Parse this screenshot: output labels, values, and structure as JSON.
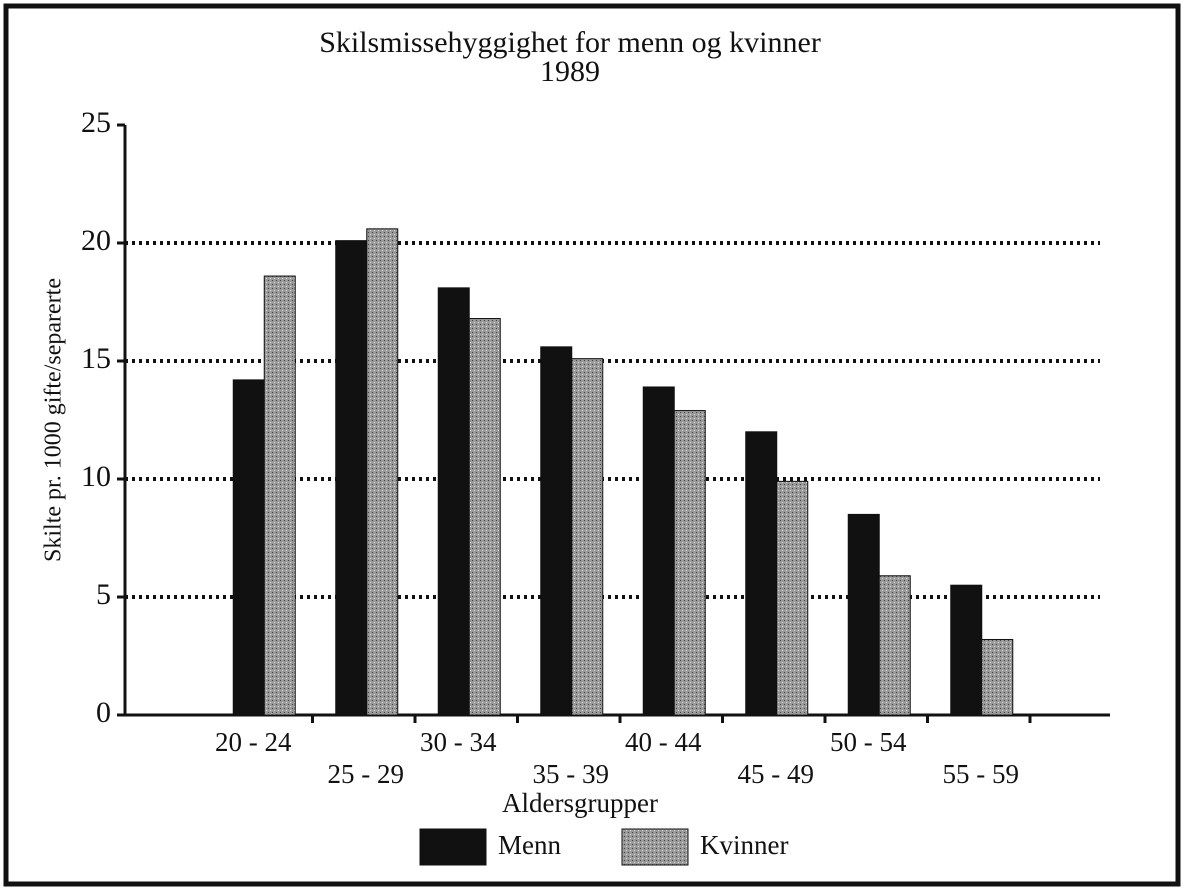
{
  "chart_data": {
    "type": "bar",
    "title": "Skilsmissehyggighet for menn og kvinner",
    "subtitle": "1989",
    "x_label": "Aldersgrupper",
    "y_label": "Skilte pr. 1000 gifte/separerte",
    "categories": [
      "20 - 24",
      "25 - 29",
      "30 - 34",
      "35 - 39",
      "40 - 44",
      "45 - 49",
      "50 - 54",
      "55 - 59"
    ],
    "series": [
      {
        "name": "Menn",
        "color": "#111111",
        "values": [
          14.2,
          20.1,
          18.1,
          15.6,
          13.9,
          12.0,
          8.5,
          5.5
        ]
      },
      {
        "name": "Kvinner",
        "color": "#9a9a9a",
        "values": [
          18.6,
          20.6,
          16.8,
          15.1,
          12.9,
          9.9,
          5.9,
          3.2
        ]
      }
    ],
    "ylim": [
      0,
      25
    ],
    "yticks": [
      0,
      5,
      10,
      15,
      20,
      25
    ],
    "grid": true,
    "legend": "bottom"
  }
}
